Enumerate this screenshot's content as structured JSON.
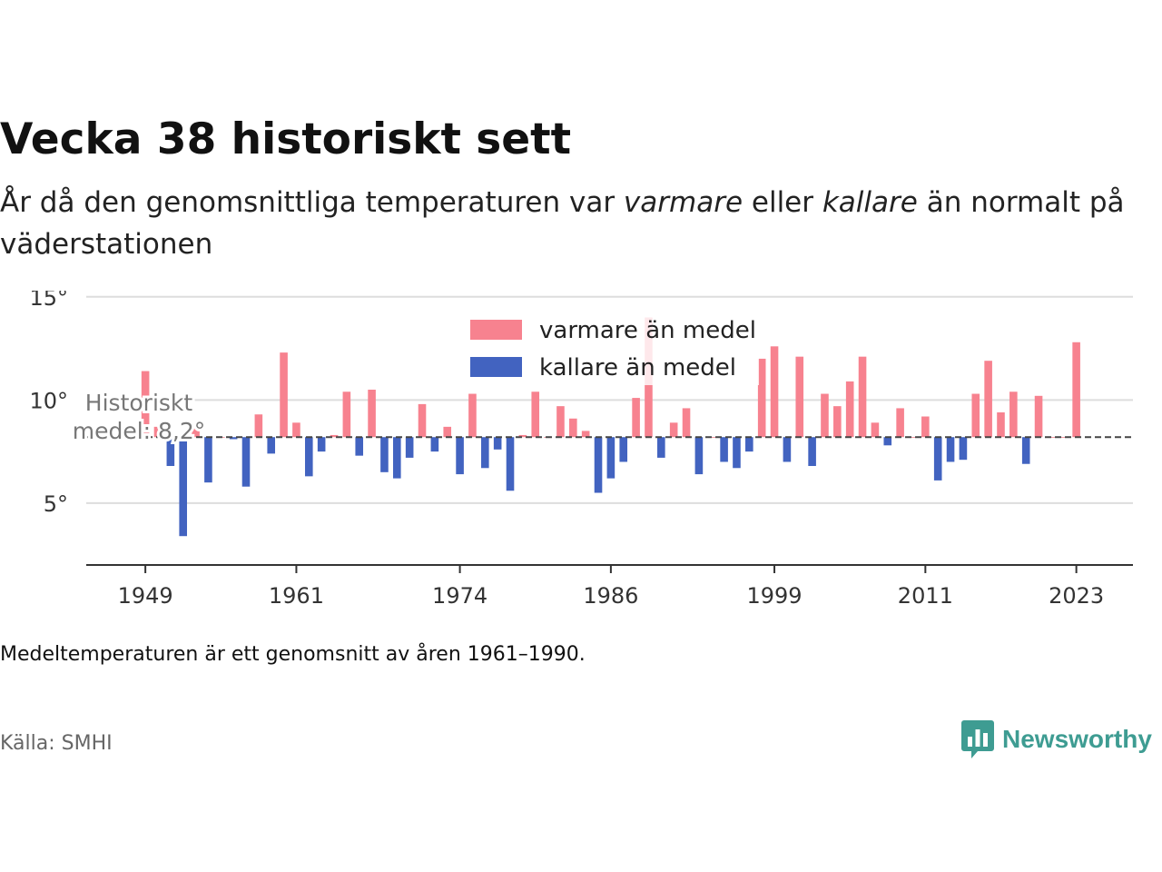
{
  "title": "Vecka 38 historiskt sett",
  "subtitle": {
    "part1": "År då den genomsnittliga temperaturen var ",
    "warm_word": "varmare",
    "part2": " eller ",
    "cold_word": "kallare",
    "part3": " än normalt på väderstationen"
  },
  "note": "Medeltemperaturen är ett genomsnitt av åren 1961–1990.",
  "source": "Källa: SMHI",
  "brand": {
    "name": "Newsworthy",
    "icon": "newsworthy-logo-icon",
    "color": "#3e9c92"
  },
  "colors": {
    "warm": "#f7828f",
    "cold": "#4263c0",
    "grid": "#dddddd",
    "axis": "#333333",
    "avg_line": "#444444"
  },
  "chart_data": {
    "type": "bar",
    "title": "Vecka 38 historiskt sett",
    "baseline": 8.2,
    "baseline_label_line1": "Historiskt",
    "baseline_label_line2": "medel: 8,2°",
    "ylim": [
      2,
      15.3
    ],
    "yticks": [
      5,
      10,
      15
    ],
    "ytick_labels": [
      "5°",
      "10°",
      "15°"
    ],
    "xlim": [
      1944.3,
      2027.5
    ],
    "xticks": [
      1949,
      1961,
      1974,
      1986,
      1999,
      2011,
      2023
    ],
    "xtick_labels": [
      "1949",
      "1961",
      "1974",
      "1986",
      "1999",
      "2011",
      "2023"
    ],
    "grid": true,
    "legend": {
      "position": "top-center",
      "items": [
        {
          "label": "varmare än medel",
          "color": "#f7828f"
        },
        {
          "label": "kallare än medel",
          "color": "#4263c0"
        }
      ]
    },
    "years": [
      1949,
      1950,
      1951,
      1952,
      1953,
      1954,
      1955,
      1956,
      1957,
      1958,
      1959,
      1960,
      1961,
      1962,
      1963,
      1964,
      1965,
      1966,
      1967,
      1968,
      1969,
      1970,
      1971,
      1972,
      1973,
      1974,
      1975,
      1976,
      1977,
      1978,
      1979,
      1980,
      1981,
      1982,
      1983,
      1984,
      1985,
      1986,
      1987,
      1988,
      1989,
      1990,
      1991,
      1992,
      1993,
      1994,
      1995,
      1996,
      1997,
      1998,
      1999,
      2000,
      2001,
      2002,
      2003,
      2004,
      2005,
      2006,
      2007,
      2008,
      2009,
      2010,
      2011,
      2012,
      2013,
      2014,
      2015,
      2016,
      2017,
      2018,
      2019,
      2020,
      2021,
      2022,
      2023
    ],
    "values": [
      11.4,
      8.7,
      6.8,
      3.4,
      8.7,
      6.0,
      8.2,
      8.1,
      5.8,
      9.3,
      7.4,
      12.3,
      8.9,
      6.3,
      7.5,
      8.3,
      10.4,
      7.3,
      10.5,
      6.5,
      6.2,
      7.2,
      9.8,
      7.5,
      8.7,
      6.4,
      10.3,
      6.7,
      7.6,
      5.6,
      8.3,
      10.4,
      8.2,
      9.7,
      9.1,
      8.5,
      5.5,
      6.2,
      7.0,
      10.1,
      14.0,
      7.2,
      8.9,
      9.6,
      6.4,
      8.2,
      7.0,
      6.7,
      7.5,
      12.0,
      12.6,
      7.0,
      12.1,
      6.8,
      10.3,
      9.7,
      10.9,
      12.1,
      8.9,
      7.8,
      9.6,
      8.2,
      9.2,
      6.1,
      7.0,
      7.1,
      10.3,
      11.9,
      9.4,
      10.4,
      6.9,
      10.2,
      8.2,
      8.2,
      12.8
    ]
  }
}
